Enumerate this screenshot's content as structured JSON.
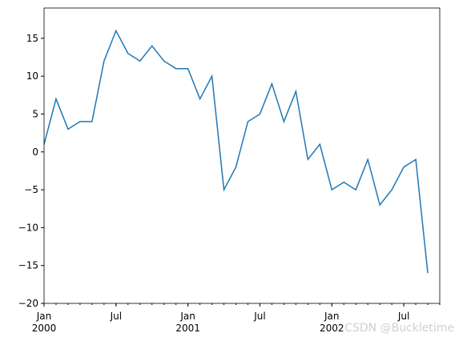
{
  "chart_data": {
    "type": "line",
    "x": [
      "2000-01",
      "2000-02",
      "2000-03",
      "2000-04",
      "2000-05",
      "2000-06",
      "2000-07",
      "2000-08",
      "2000-09",
      "2000-10",
      "2000-11",
      "2000-12",
      "2001-01",
      "2001-02",
      "2001-03",
      "2001-04",
      "2001-05",
      "2001-06",
      "2001-07",
      "2001-08",
      "2001-09",
      "2001-10",
      "2001-11",
      "2001-12",
      "2002-01",
      "2002-02",
      "2002-03",
      "2002-04",
      "2002-05",
      "2002-06",
      "2002-07",
      "2002-08",
      "2002-09"
    ],
    "series": [
      {
        "color": "#1f77b4",
        "values": [
          1,
          7,
          3,
          4,
          4,
          12,
          16,
          13,
          12,
          14,
          12,
          11,
          11,
          7,
          10,
          -5,
          -2,
          4,
          5,
          9,
          4,
          8,
          -1,
          1,
          -5,
          -4,
          -5,
          -1,
          -7,
          -5,
          -2,
          -1,
          -16
        ]
      }
    ],
    "xlim": [
      "2000-01",
      "2002-10"
    ],
    "xticks": [
      {
        "value": "2000-01",
        "label": "Jan 2000"
      },
      {
        "value": "2000-07",
        "label": "Jul"
      },
      {
        "value": "2001-01",
        "label": "Jan 2001"
      },
      {
        "value": "2001-07",
        "label": "Jul"
      },
      {
        "value": "2002-01",
        "label": "Jan 2002"
      },
      {
        "value": "2002-07",
        "label": "Jul"
      }
    ],
    "ylim": [
      -20,
      19
    ],
    "yticks": [
      {
        "value": -20,
        "label": "−20"
      },
      {
        "value": -15,
        "label": "−15"
      },
      {
        "value": -10,
        "label": "−10"
      },
      {
        "value": -5,
        "label": "−5"
      },
      0,
      5,
      10,
      15
    ],
    "grid": false,
    "annotation": "CSDN @Buckletime"
  }
}
